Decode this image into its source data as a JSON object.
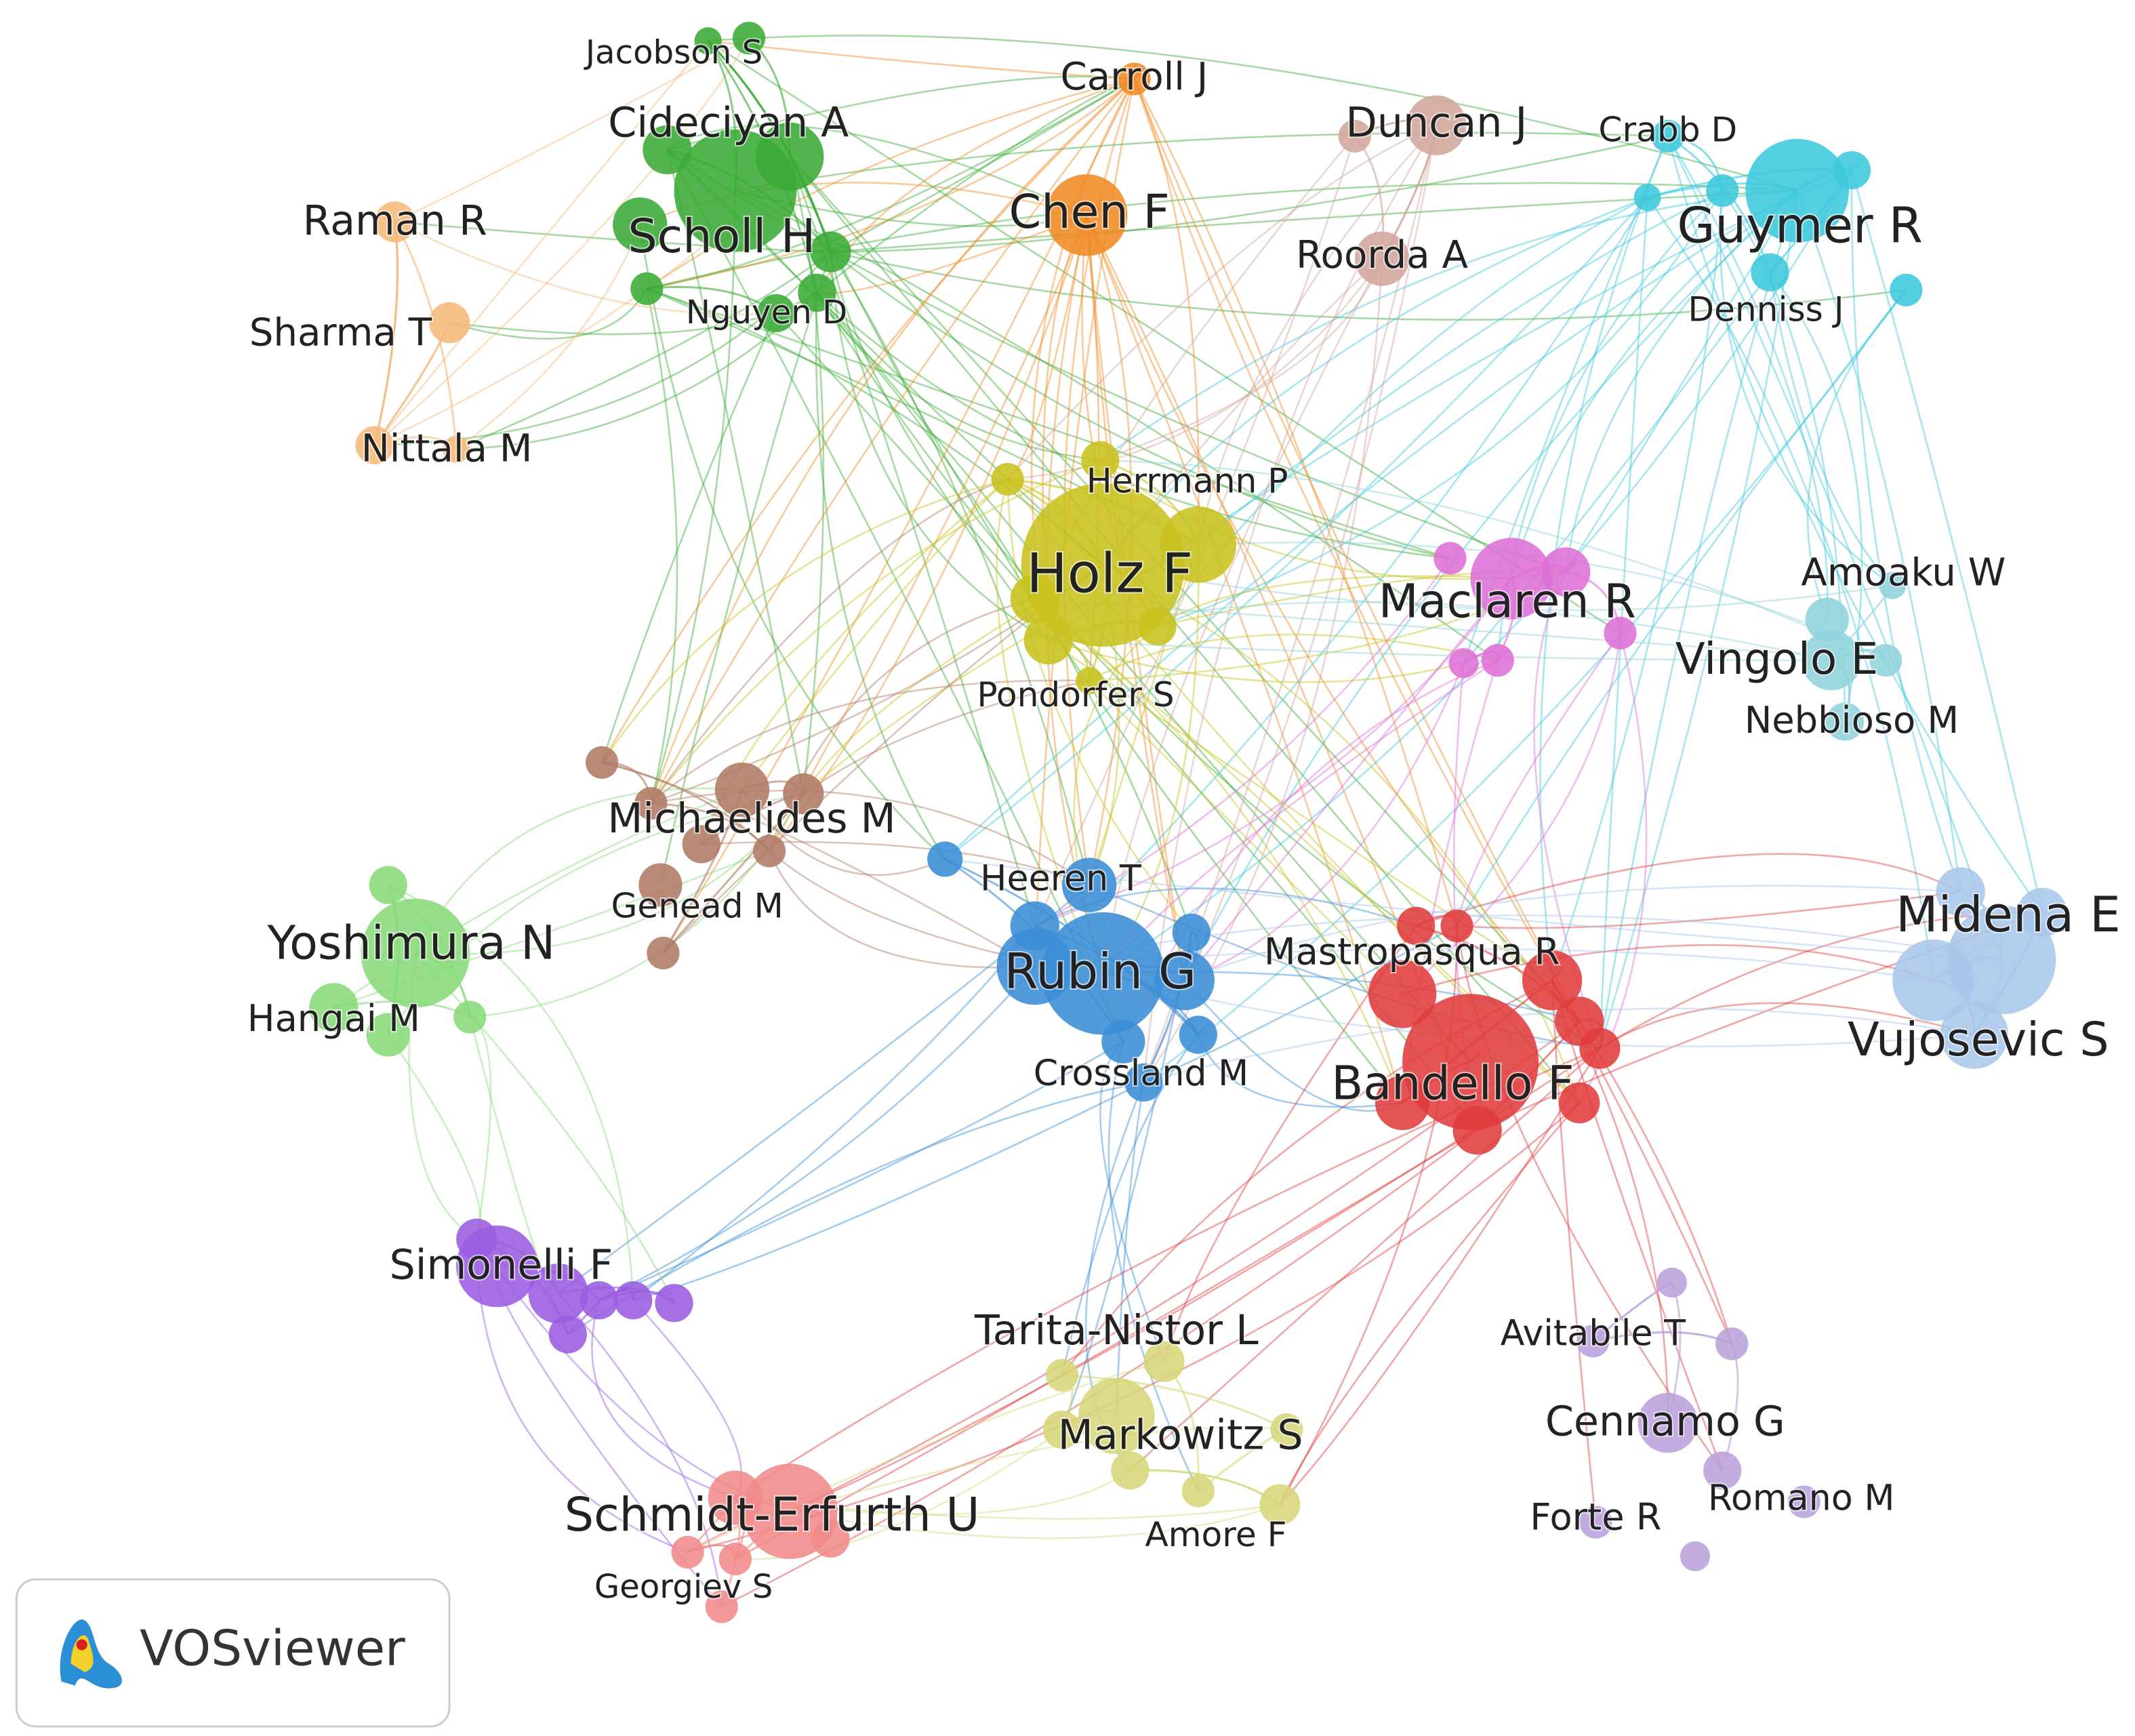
{
  "nodes": [
    {
      "label": "Jacobson S"
    },
    {
      "label": "Cideciyan A"
    },
    {
      "label": "Scholl H"
    },
    {
      "label": "Nguyen D"
    },
    {
      "label": "Raman R"
    },
    {
      "label": "Sharma T"
    },
    {
      "label": "Nittala M"
    },
    {
      "label": "Carroll J"
    },
    {
      "label": "Chen F"
    },
    {
      "label": "Duncan J"
    },
    {
      "label": "Roorda A"
    },
    {
      "label": "Crabb D"
    },
    {
      "label": "Guymer R"
    },
    {
      "label": "Denniss J"
    },
    {
      "label": "Herrmann P"
    },
    {
      "label": "Holz F"
    },
    {
      "label": "Pondorfer S"
    },
    {
      "label": "Maclaren R"
    },
    {
      "label": "Amoaku W"
    },
    {
      "label": "Vingolo E"
    },
    {
      "label": "Nebbioso M"
    },
    {
      "label": "Michaelides M"
    },
    {
      "label": "Genead M"
    },
    {
      "label": "Heeren T"
    },
    {
      "label": "Rubin G"
    },
    {
      "label": "Crossland M"
    },
    {
      "label": "Yoshimura N"
    },
    {
      "label": "Hangai M"
    },
    {
      "label": "Mastropasqua R"
    },
    {
      "label": "Bandello F"
    },
    {
      "label": "Midena E"
    },
    {
      "label": "Vujosevic S"
    },
    {
      "label": "Simonelli F"
    },
    {
      "label": "Tarita-Nistor L"
    },
    {
      "label": "Markowitz S"
    },
    {
      "label": "Amore F"
    },
    {
      "label": "Avitabile T"
    },
    {
      "label": "Cennamo G"
    },
    {
      "label": "Forte R"
    },
    {
      "label": "Romano M"
    },
    {
      "label": "Schmidt-Erfurth U"
    },
    {
      "label": "Georgiev S"
    }
  ],
  "logo": {
    "text": "VOSviewer"
  }
}
